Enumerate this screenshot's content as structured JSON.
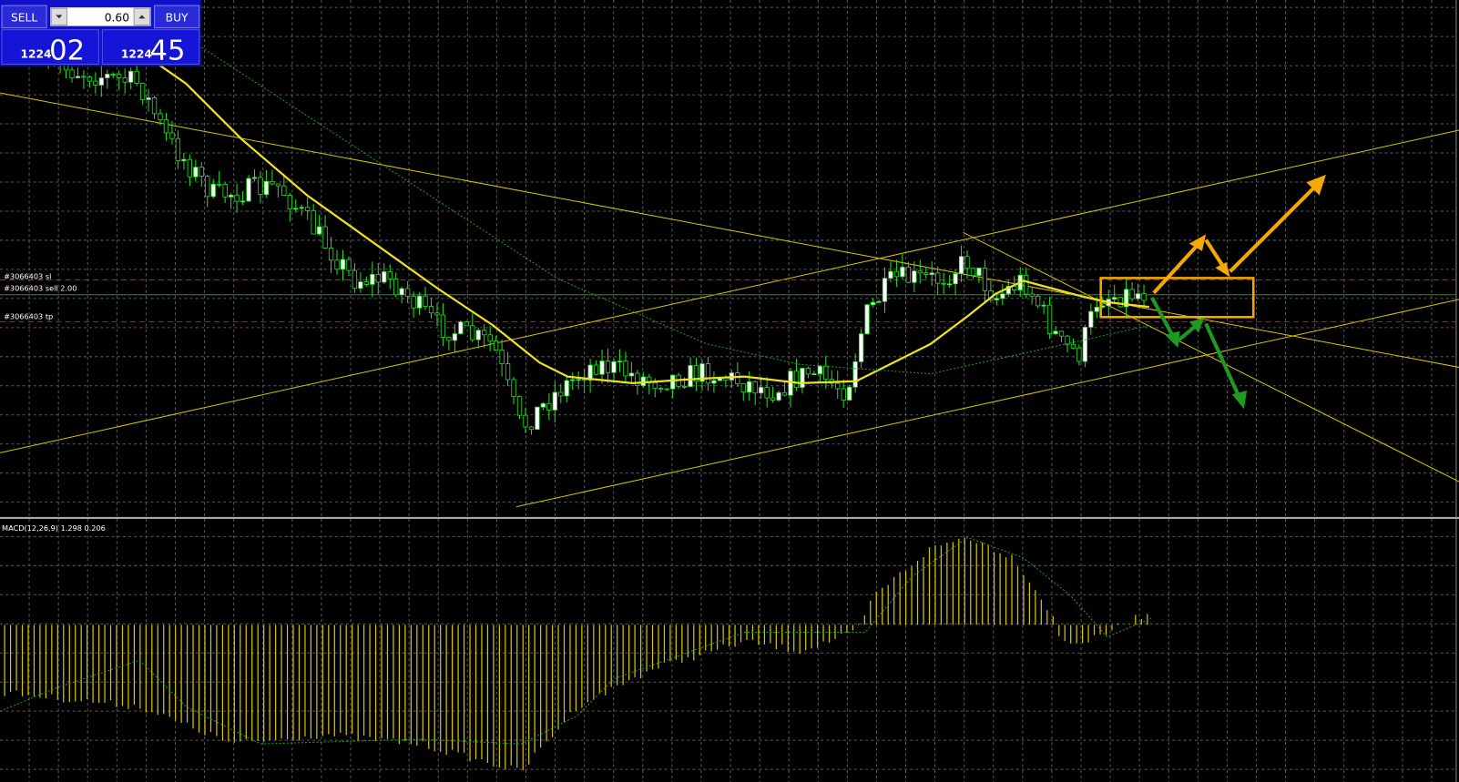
{
  "trade_panel": {
    "sell_button": "SELL",
    "buy_button": "BUY",
    "lot_size": "0.60",
    "sell_price": {
      "big": "1224",
      "pips": "02"
    },
    "buy_price": {
      "big": "1224",
      "pips": "45"
    }
  },
  "order_lines": {
    "stop_loss": "#3066403 sl",
    "order": "#3066403 sell 2.00",
    "take_profit": "#3066403 tp"
  },
  "indicator": {
    "macd_label": "MACD(12,26,9) 1.298 0.206"
  }
}
